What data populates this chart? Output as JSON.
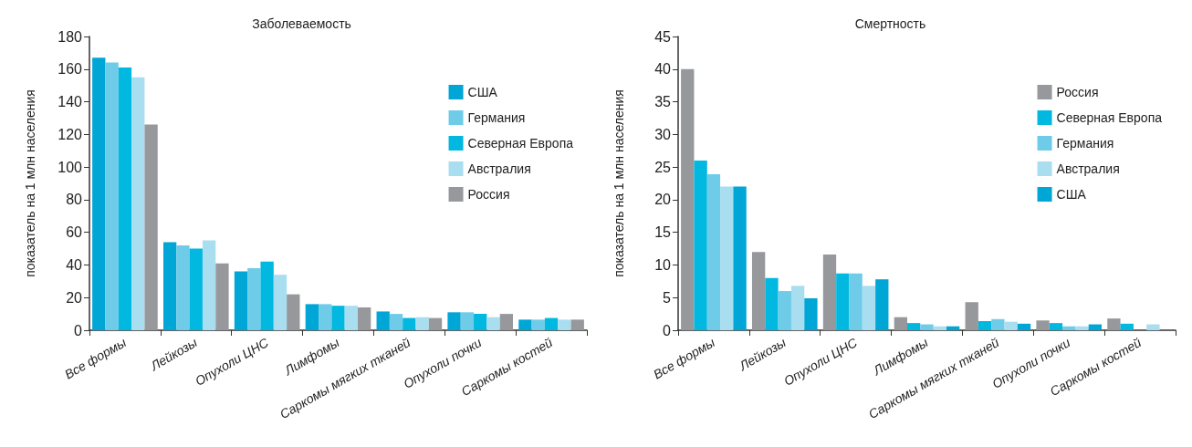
{
  "chart_data": [
    {
      "type": "bar",
      "title": "Заболеваемость",
      "ylabel": "показатель на 1 млн населения",
      "categories": [
        "Все формы",
        "Лейкозы",
        "Опухоли ЦНС",
        "Лимфомы",
        "Саркомы мягких тканей",
        "Опухоли почки",
        "Саркомы костей"
      ],
      "ylim": [
        0,
        180
      ],
      "yticks": [
        0,
        20,
        40,
        60,
        80,
        100,
        120,
        140,
        160,
        180
      ],
      "grid": false,
      "legend": "top right",
      "series": [
        {
          "name": "США",
          "color": "#00a6d6",
          "values": [
            167,
            54,
            36,
            16,
            11.5,
            11,
            6.5
          ]
        },
        {
          "name": "Германия",
          "color": "#6ecce8",
          "values": [
            164,
            52,
            38,
            16,
            10,
            11,
            6.5
          ]
        },
        {
          "name": "Северная Европа",
          "color": "#00b8e0",
          "values": [
            161,
            50,
            42,
            15,
            7.5,
            10,
            7.5
          ]
        },
        {
          "name": "Австралия",
          "color": "#a8def0",
          "values": [
            155,
            55,
            34,
            15,
            8,
            8,
            6.5
          ]
        },
        {
          "name": "Россия",
          "color": "#97989c",
          "values": [
            126,
            41,
            22,
            14,
            7.5,
            10,
            6.5
          ]
        }
      ]
    },
    {
      "type": "bar",
      "title": "Смертность",
      "ylabel": "показатель на 1 млн населения",
      "categories": [
        "Все формы",
        "Лейкозы",
        "Опухоли ЦНС",
        "Лимфомы",
        "Саркомы мягких тканей",
        "Опухоли почки",
        "Саркомы костей"
      ],
      "ylim": [
        0,
        45
      ],
      "yticks": [
        0,
        5,
        10,
        15,
        20,
        25,
        30,
        35,
        40,
        45
      ],
      "grid": false,
      "legend": "top right",
      "series": [
        {
          "name": "Россия",
          "color": "#97989c",
          "values": [
            40,
            12,
            11.6,
            2,
            4.3,
            1.5,
            1.8
          ]
        },
        {
          "name": "Северная Европа",
          "color": "#00b8e0",
          "values": [
            26,
            8,
            8.7,
            1.1,
            1.4,
            1.1,
            1
          ]
        },
        {
          "name": "Германия",
          "color": "#6ecce8",
          "values": [
            23.9,
            6,
            8.7,
            0.9,
            1.7,
            0.6,
            null
          ]
        },
        {
          "name": "Австралия",
          "color": "#a8def0",
          "values": [
            22,
            6.8,
            6.8,
            0.6,
            1.3,
            0.6,
            0.9
          ]
        },
        {
          "name": "США",
          "color": "#00a6d6",
          "values": [
            22,
            4.9,
            7.8,
            0.6,
            1,
            0.9,
            null
          ]
        }
      ]
    }
  ]
}
